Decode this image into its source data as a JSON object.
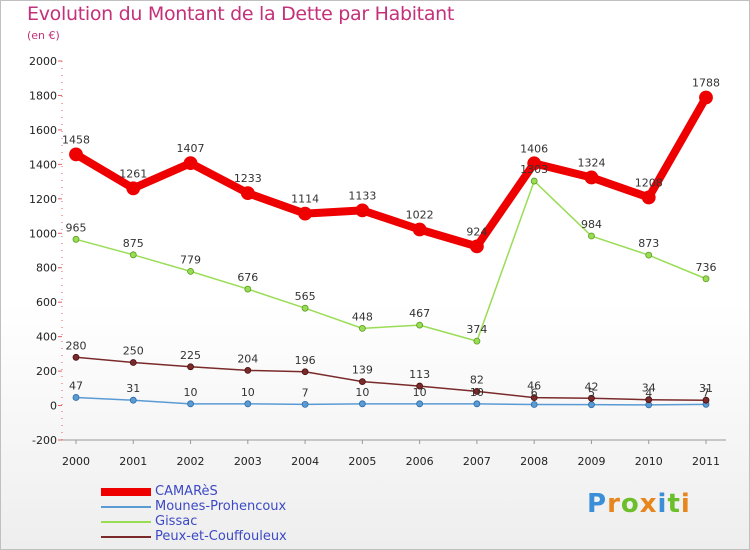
{
  "title": "Evolution du Montant de la Dette par Habitant",
  "subtitle": "(en €)",
  "logo": "Proxiti",
  "colors": {
    "title": "#c4307a",
    "legend_text": "#3c49c4",
    "camares": "#ee0000",
    "mounes": "#5a9bd4",
    "gissac": "#99dd55",
    "peux": "#7a2a2a"
  },
  "chart_data": {
    "type": "line",
    "title": "Evolution du Montant de la Dette par Habitant",
    "subtitle": "(en €)",
    "x": [
      "2000",
      "2001",
      "2002",
      "2003",
      "2004",
      "2005",
      "2006",
      "2007",
      "2008",
      "2009",
      "2010",
      "2011"
    ],
    "ylim": [
      -200,
      2000
    ],
    "yticks": [
      "-200",
      "0",
      "200",
      "400",
      "600",
      "800",
      "1000",
      "1200",
      "1400",
      "1600",
      "1800",
      "2000"
    ],
    "grid": false,
    "legend": "bottom-left",
    "series": [
      {
        "name": "CAMARèS",
        "values": [
          1458,
          1261,
          1407,
          1233,
          1114,
          1133,
          1022,
          924,
          1406,
          1324,
          1208,
          1788
        ],
        "labels": [
          "1458",
          "1261",
          "1407",
          "1233",
          "1114",
          "1133",
          "1022",
          "924",
          "1406",
          "1324",
          "1208",
          "1788"
        ]
      },
      {
        "name": "Mounes-Prohencoux",
        "values": [
          47,
          31,
          10,
          10,
          7,
          10,
          10,
          10,
          6,
          5,
          4,
          7
        ],
        "labels": [
          "47",
          "31",
          "10",
          "10",
          "7",
          "10",
          "10",
          "10",
          "6",
          "5",
          "4",
          "7"
        ]
      },
      {
        "name": "Gissac",
        "values": [
          965,
          875,
          779,
          676,
          565,
          448,
          467,
          374,
          1303,
          984,
          873,
          736
        ],
        "labels": [
          "965",
          "875",
          "779",
          "676",
          "565",
          "448",
          "467",
          "374",
          "1303",
          "984",
          "873",
          "736"
        ]
      },
      {
        "name": "Peux-et-Couffouleux",
        "values": [
          280,
          250,
          225,
          204,
          196,
          139,
          113,
          82,
          46,
          42,
          34,
          31
        ],
        "labels": [
          "280",
          "250",
          "225",
          "204",
          "196",
          "139",
          "113",
          "82",
          "46",
          "42",
          "34",
          "31"
        ]
      }
    ]
  }
}
